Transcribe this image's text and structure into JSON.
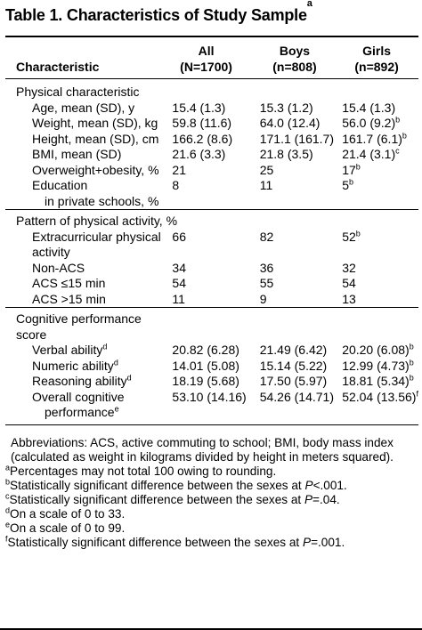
{
  "title": {
    "text": "Table 1. Characteristics of Study Sample",
    "sup": "a"
  },
  "columns": {
    "characteristic": "Characteristic",
    "all": {
      "line1": "All",
      "line2": "(N=1700)"
    },
    "boys": {
      "line1": "Boys",
      "line2": "(n=808)"
    },
    "girls": {
      "line1": "Girls",
      "line2": "(n=892)"
    }
  },
  "sections": [
    {
      "heading": "Physical characteristic",
      "rows": [
        {
          "label": "Age, mean (SD), y",
          "all": "15.4 (1.3)",
          "boys": "15.3 (1.2)",
          "girls": "15.4 (1.3)",
          "girls_sup": ""
        },
        {
          "label": "Weight, mean (SD), kg",
          "all": "59.8 (11.6)",
          "boys": "64.0 (12.4)",
          "girls": "56.0 (9.2)",
          "girls_sup": "b"
        },
        {
          "label": "Height, mean (SD), cm",
          "all": "166.2 (8.6)",
          "boys": "171.1 (161.7)",
          "girls": "161.7 (6.1)",
          "girls_sup": "b"
        },
        {
          "label": "BMI, mean (SD)",
          "all": "21.6 (3.3)",
          "boys": "21.8 (3.5)",
          "girls": "21.4 (3.1)",
          "girls_sup": "c"
        },
        {
          "label": "Overweight+obesity, %",
          "all": "21",
          "boys": "25",
          "girls": "17",
          "girls_sup": "b"
        },
        {
          "label": "Education",
          "label2": "in private schools, %",
          "all": "8",
          "boys": "11",
          "girls": "5",
          "girls_sup": "b"
        }
      ]
    },
    {
      "heading": "Pattern of physical activity, %",
      "rows": [
        {
          "label": "Extracurricular physical",
          "label2": "activity",
          "all": "66",
          "boys": "82",
          "girls": "52",
          "girls_sup": "b"
        },
        {
          "label": "Non-ACS",
          "all": "34",
          "boys": "36",
          "girls": "32",
          "girls_sup": ""
        },
        {
          "label": "ACS ≤15 min",
          "all": "54",
          "boys": "55",
          "girls": "54",
          "girls_sup": ""
        },
        {
          "label": "ACS >15 min",
          "all": "11",
          "boys": "9",
          "girls": "13",
          "girls_sup": ""
        }
      ]
    },
    {
      "heading": "Cognitive performance",
      "heading2": "score",
      "rows": [
        {
          "label": "Verbal ability",
          "label_sup": "d",
          "all": "20.82 (6.28)",
          "boys": "21.49 (6.42)",
          "girls": "20.20 (6.08)",
          "girls_sup": "b"
        },
        {
          "label": "Numeric ability",
          "label_sup": "d",
          "all": "14.01 (5.08)",
          "boys": "15.14 (5.22)",
          "girls": "12.99 (4.73)",
          "girls_sup": "b"
        },
        {
          "label": "Reasoning ability",
          "label_sup": "d",
          "all": "18.19 (5.68)",
          "boys": "17.50 (5.97)",
          "girls": "18.81 (5.34)",
          "girls_sup": "b"
        },
        {
          "label": "Overall cognitive",
          "label2": "performance",
          "label2_sup": "e",
          "all": "53.10 (14.16)",
          "boys": "54.26 (14.71)",
          "girls": "52.04 (13.56)",
          "girls_sup": "f"
        }
      ]
    }
  ],
  "footnotes": {
    "abbreviations": "Abbreviations: ACS, active commuting to school; BMI, body mass index (calculated as weight in kilograms divided by height in meters squared).",
    "notes": [
      {
        "mark": "a",
        "pre": "Percentages may not total 100 owing to rounding.",
        "italic": "",
        "post": ""
      },
      {
        "mark": "b",
        "pre": "Statistically significant difference between the sexes at ",
        "italic": "P",
        "post": "<.001."
      },
      {
        "mark": "c",
        "pre": "Statistically significant difference between the sexes at ",
        "italic": "P",
        "post": "=.04."
      },
      {
        "mark": "d",
        "pre": "On a scale of 0 to 33.",
        "italic": "",
        "post": ""
      },
      {
        "mark": "e",
        "pre": "On a scale of 0 to 99.",
        "italic": "",
        "post": ""
      },
      {
        "mark": "f",
        "pre": "Statistically significant difference between the sexes at ",
        "italic": "P",
        "post": "=.001."
      }
    ]
  }
}
